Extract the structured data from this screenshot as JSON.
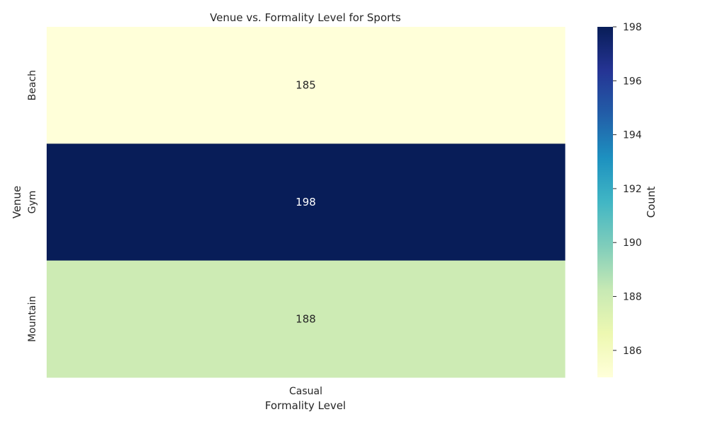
{
  "chart_data": {
    "type": "heatmap",
    "title": "Venue vs. Formality Level for Sports",
    "xlabel": "Formality Level",
    "ylabel": "Venue",
    "x_categories": [
      "Casual"
    ],
    "y_categories": [
      "Beach",
      "Gym",
      "Mountain"
    ],
    "values": [
      [
        185
      ],
      [
        198
      ],
      [
        188
      ]
    ],
    "annotations": true,
    "colormap": "YlGnBu",
    "vmin": 185,
    "vmax": 198,
    "colorbar": {
      "label": "Count",
      "ticks": [
        186,
        188,
        190,
        192,
        194,
        196,
        198
      ]
    },
    "grid": false
  },
  "colors": {
    "colormap_stops": [
      "#ffffd9",
      "#edf8b1",
      "#c7e9b4",
      "#7fcdbb",
      "#41b6c4",
      "#1d91c0",
      "#225ea8",
      "#253494",
      "#081d58"
    ]
  }
}
